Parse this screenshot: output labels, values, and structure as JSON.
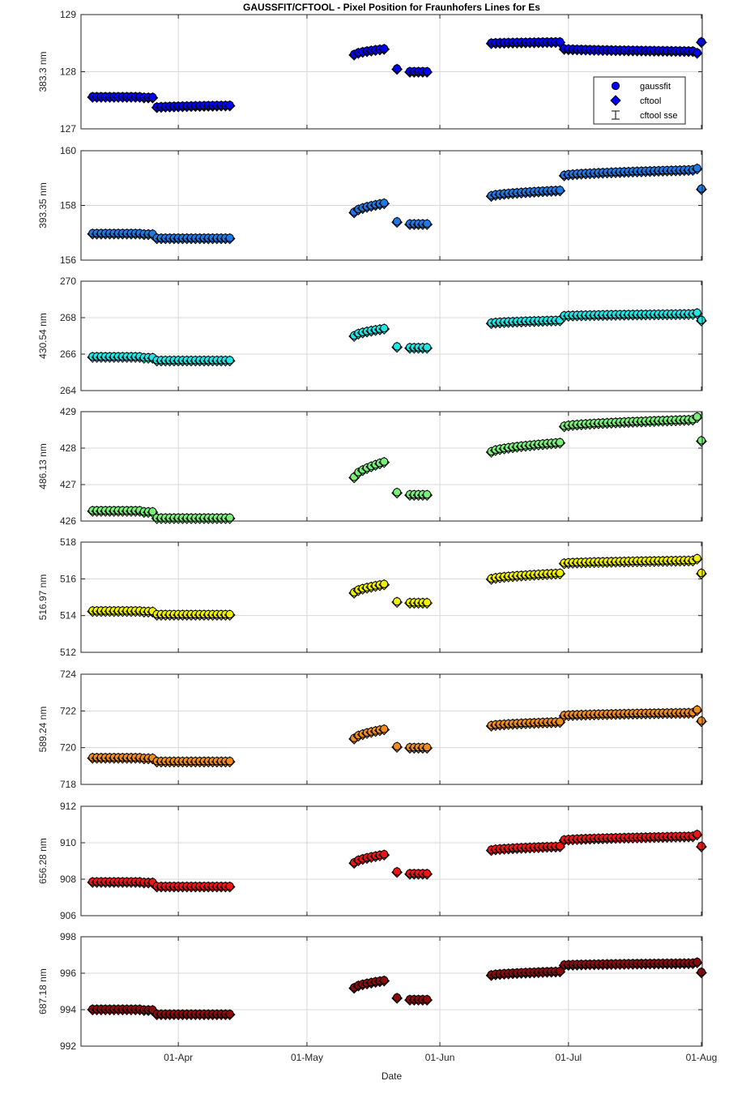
{
  "figure": {
    "title": "GAUSSFIT/CFTOOL - Pixel Position for Fraunhofers Lines for Es",
    "xlabel": "Date"
  },
  "legend": {
    "entries": [
      "gaussfit",
      "cftool",
      "cftool sse"
    ]
  },
  "chart_data": [
    {
      "type": "scatter",
      "ylabel": "383.3 nm",
      "ylim": [
        127,
        129
      ],
      "yticks": [
        127,
        128,
        129
      ],
      "color": "#0000ff",
      "xticks": [
        "01-Apr",
        "01-May",
        "01-Jun",
        "01-Jul",
        "01-Aug"
      ],
      "segments": [
        {
          "start": "2016-03-12",
          "end": "2016-03-23",
          "y0": 127.56,
          "y1": 127.56
        },
        {
          "start": "2016-03-24",
          "end": "2016-03-26",
          "y0": 127.55,
          "y1": 127.55
        },
        {
          "start": "2016-03-27",
          "end": "2016-04-13",
          "y0": 127.38,
          "y1": 127.41
        },
        {
          "start": "2016-05-12",
          "end": "2016-05-19",
          "y0": 128.3,
          "y1": 128.4
        },
        {
          "start": "2016-05-22",
          "end": "2016-05-22",
          "y0": 128.05,
          "y1": 128.05
        },
        {
          "start": "2016-05-25",
          "end": "2016-05-29",
          "y0": 128.0,
          "y1": 128.0
        },
        {
          "start": "2016-06-13",
          "end": "2016-06-29",
          "y0": 128.5,
          "y1": 128.52
        },
        {
          "start": "2016-06-30",
          "end": "2016-07-30",
          "y0": 128.4,
          "y1": 128.36
        },
        {
          "start": "2016-07-31",
          "end": "2016-08-01",
          "y0": 128.33,
          "y1": 128.52
        }
      ]
    },
    {
      "type": "scatter",
      "ylabel": "393.35 nm",
      "ylim": [
        156,
        160
      ],
      "yticks": [
        156,
        158,
        160
      ],
      "color": "#1e78e6",
      "xticks": [
        "01-Apr",
        "01-May",
        "01-Jun",
        "01-Jul",
        "01-Aug"
      ],
      "segments": [
        {
          "start": "2016-03-12",
          "end": "2016-03-23",
          "y0": 156.97,
          "y1": 156.97
        },
        {
          "start": "2016-03-24",
          "end": "2016-03-26",
          "y0": 156.95,
          "y1": 156.95
        },
        {
          "start": "2016-03-27",
          "end": "2016-04-13",
          "y0": 156.8,
          "y1": 156.8
        },
        {
          "start": "2016-05-12",
          "end": "2016-05-19",
          "y0": 157.75,
          "y1": 158.08
        },
        {
          "start": "2016-05-22",
          "end": "2016-05-22",
          "y0": 157.4,
          "y1": 157.4
        },
        {
          "start": "2016-05-25",
          "end": "2016-05-29",
          "y0": 157.32,
          "y1": 157.32
        },
        {
          "start": "2016-06-13",
          "end": "2016-06-29",
          "y0": 158.35,
          "y1": 158.55
        },
        {
          "start": "2016-06-30",
          "end": "2016-07-30",
          "y0": 159.1,
          "y1": 159.3
        },
        {
          "start": "2016-07-31",
          "end": "2016-08-01",
          "y0": 159.35,
          "y1": 158.6
        }
      ]
    },
    {
      "type": "scatter",
      "ylabel": "430.54 nm",
      "ylim": [
        264,
        270
      ],
      "yticks": [
        264,
        266,
        268,
        270
      ],
      "color": "#1ee6e6",
      "xticks": [
        "01-Apr",
        "01-May",
        "01-Jun",
        "01-Jul",
        "01-Aug"
      ],
      "segments": [
        {
          "start": "2016-03-12",
          "end": "2016-03-23",
          "y0": 265.85,
          "y1": 265.85
        },
        {
          "start": "2016-03-24",
          "end": "2016-03-26",
          "y0": 265.8,
          "y1": 265.8
        },
        {
          "start": "2016-03-27",
          "end": "2016-04-13",
          "y0": 265.65,
          "y1": 265.65
        },
        {
          "start": "2016-05-12",
          "end": "2016-05-19",
          "y0": 267.0,
          "y1": 267.4
        },
        {
          "start": "2016-05-22",
          "end": "2016-05-22",
          "y0": 266.4,
          "y1": 266.4
        },
        {
          "start": "2016-05-25",
          "end": "2016-05-29",
          "y0": 266.35,
          "y1": 266.35
        },
        {
          "start": "2016-06-13",
          "end": "2016-06-29",
          "y0": 267.7,
          "y1": 267.85
        },
        {
          "start": "2016-06-30",
          "end": "2016-07-30",
          "y0": 268.1,
          "y1": 268.2
        },
        {
          "start": "2016-07-31",
          "end": "2016-08-01",
          "y0": 268.25,
          "y1": 267.85
        }
      ]
    },
    {
      "type": "scatter",
      "ylabel": "486.13 nm",
      "ylim": [
        426,
        429
      ],
      "yticks": [
        426,
        427,
        428,
        429
      ],
      "color": "#78f078",
      "xticks": [
        "01-Apr",
        "01-May",
        "01-Jun",
        "01-Jul",
        "01-Aug"
      ],
      "segments": [
        {
          "start": "2016-03-12",
          "end": "2016-03-23",
          "y0": 426.28,
          "y1": 426.28
        },
        {
          "start": "2016-03-24",
          "end": "2016-03-26",
          "y0": 426.25,
          "y1": 426.25
        },
        {
          "start": "2016-03-27",
          "end": "2016-04-13",
          "y0": 426.08,
          "y1": 426.08
        },
        {
          "start": "2016-05-12",
          "end": "2016-05-19",
          "y0": 427.2,
          "y1": 427.62
        },
        {
          "start": "2016-05-22",
          "end": "2016-05-22",
          "y0": 426.78,
          "y1": 426.78
        },
        {
          "start": "2016-05-25",
          "end": "2016-05-29",
          "y0": 426.72,
          "y1": 426.72
        },
        {
          "start": "2016-06-13",
          "end": "2016-06-29",
          "y0": 427.9,
          "y1": 428.15
        },
        {
          "start": "2016-06-30",
          "end": "2016-07-30",
          "y0": 428.6,
          "y1": 428.78
        },
        {
          "start": "2016-07-31",
          "end": "2016-08-01",
          "y0": 428.85,
          "y1": 428.2
        }
      ]
    },
    {
      "type": "scatter",
      "ylabel": "516.97 nm",
      "ylim": [
        512,
        518
      ],
      "yticks": [
        512,
        514,
        516,
        518
      ],
      "color": "#f0f000",
      "xticks": [
        "01-Apr",
        "01-May",
        "01-Jun",
        "01-Jul",
        "01-Aug"
      ],
      "segments": [
        {
          "start": "2016-03-12",
          "end": "2016-03-23",
          "y0": 514.25,
          "y1": 514.25
        },
        {
          "start": "2016-03-24",
          "end": "2016-03-26",
          "y0": 514.22,
          "y1": 514.22
        },
        {
          "start": "2016-03-27",
          "end": "2016-04-13",
          "y0": 514.05,
          "y1": 514.05
        },
        {
          "start": "2016-05-12",
          "end": "2016-05-19",
          "y0": 515.25,
          "y1": 515.7
        },
        {
          "start": "2016-05-22",
          "end": "2016-05-22",
          "y0": 514.75,
          "y1": 514.75
        },
        {
          "start": "2016-05-25",
          "end": "2016-05-29",
          "y0": 514.7,
          "y1": 514.7
        },
        {
          "start": "2016-06-13",
          "end": "2016-06-29",
          "y0": 516.0,
          "y1": 516.3
        },
        {
          "start": "2016-06-30",
          "end": "2016-07-30",
          "y0": 516.85,
          "y1": 517.0
        },
        {
          "start": "2016-07-31",
          "end": "2016-08-01",
          "y0": 517.1,
          "y1": 516.3
        }
      ]
    },
    {
      "type": "scatter",
      "ylabel": "589.24 nm",
      "ylim": [
        718,
        724
      ],
      "yticks": [
        718,
        720,
        722,
        724
      ],
      "color": "#f08c1e",
      "xticks": [
        "01-Apr",
        "01-May",
        "01-Jun",
        "01-Jul",
        "01-Aug"
      ],
      "segments": [
        {
          "start": "2016-03-12",
          "end": "2016-03-23",
          "y0": 719.45,
          "y1": 719.45
        },
        {
          "start": "2016-03-24",
          "end": "2016-03-26",
          "y0": 719.42,
          "y1": 719.42
        },
        {
          "start": "2016-03-27",
          "end": "2016-04-13",
          "y0": 719.25,
          "y1": 719.25
        },
        {
          "start": "2016-05-12",
          "end": "2016-05-19",
          "y0": 720.5,
          "y1": 721.0
        },
        {
          "start": "2016-05-22",
          "end": "2016-05-22",
          "y0": 720.05,
          "y1": 720.05
        },
        {
          "start": "2016-05-25",
          "end": "2016-05-29",
          "y0": 720.0,
          "y1": 720.0
        },
        {
          "start": "2016-06-13",
          "end": "2016-06-29",
          "y0": 721.2,
          "y1": 721.4
        },
        {
          "start": "2016-06-30",
          "end": "2016-07-30",
          "y0": 721.75,
          "y1": 721.9
        },
        {
          "start": "2016-07-31",
          "end": "2016-08-01",
          "y0": 722.05,
          "y1": 721.45
        }
      ]
    },
    {
      "type": "scatter",
      "ylabel": "656.28 nm",
      "ylim": [
        906,
        912
      ],
      "yticks": [
        906,
        908,
        910,
        912
      ],
      "color": "#f01414",
      "xticks": [
        "01-Apr",
        "01-May",
        "01-Jun",
        "01-Jul",
        "01-Aug"
      ],
      "segments": [
        {
          "start": "2016-03-12",
          "end": "2016-03-23",
          "y0": 907.85,
          "y1": 907.85
        },
        {
          "start": "2016-03-24",
          "end": "2016-03-26",
          "y0": 907.82,
          "y1": 907.82
        },
        {
          "start": "2016-03-27",
          "end": "2016-04-13",
          "y0": 907.6,
          "y1": 907.6
        },
        {
          "start": "2016-05-12",
          "end": "2016-05-19",
          "y0": 908.9,
          "y1": 909.35
        },
        {
          "start": "2016-05-22",
          "end": "2016-05-22",
          "y0": 908.4,
          "y1": 908.4
        },
        {
          "start": "2016-05-25",
          "end": "2016-05-29",
          "y0": 908.3,
          "y1": 908.3
        },
        {
          "start": "2016-06-13",
          "end": "2016-06-29",
          "y0": 909.6,
          "y1": 909.8
        },
        {
          "start": "2016-06-30",
          "end": "2016-07-30",
          "y0": 910.15,
          "y1": 910.35
        },
        {
          "start": "2016-07-31",
          "end": "2016-08-01",
          "y0": 910.45,
          "y1": 909.8
        }
      ]
    },
    {
      "type": "scatter",
      "ylabel": "687.18 nm",
      "ylim": [
        992,
        998
      ],
      "yticks": [
        992,
        994,
        996,
        998
      ],
      "color": "#8c0a0a",
      "xticks": [
        "01-Apr",
        "01-May",
        "01-Jun",
        "01-Jul",
        "01-Aug"
      ],
      "segments": [
        {
          "start": "2016-03-12",
          "end": "2016-03-23",
          "y0": 994.02,
          "y1": 994.02
        },
        {
          "start": "2016-03-24",
          "end": "2016-03-26",
          "y0": 993.98,
          "y1": 993.98
        },
        {
          "start": "2016-03-27",
          "end": "2016-04-13",
          "y0": 993.75,
          "y1": 993.75
        },
        {
          "start": "2016-05-12",
          "end": "2016-05-19",
          "y0": 995.2,
          "y1": 995.6
        },
        {
          "start": "2016-05-22",
          "end": "2016-05-22",
          "y0": 994.65,
          "y1": 994.65
        },
        {
          "start": "2016-05-25",
          "end": "2016-05-29",
          "y0": 994.55,
          "y1": 994.55
        },
        {
          "start": "2016-06-13",
          "end": "2016-06-29",
          "y0": 995.9,
          "y1": 996.1
        },
        {
          "start": "2016-06-30",
          "end": "2016-07-30",
          "y0": 996.45,
          "y1": 996.55
        },
        {
          "start": "2016-07-31",
          "end": "2016-08-01",
          "y0": 996.6,
          "y1": 996.05
        }
      ]
    }
  ]
}
